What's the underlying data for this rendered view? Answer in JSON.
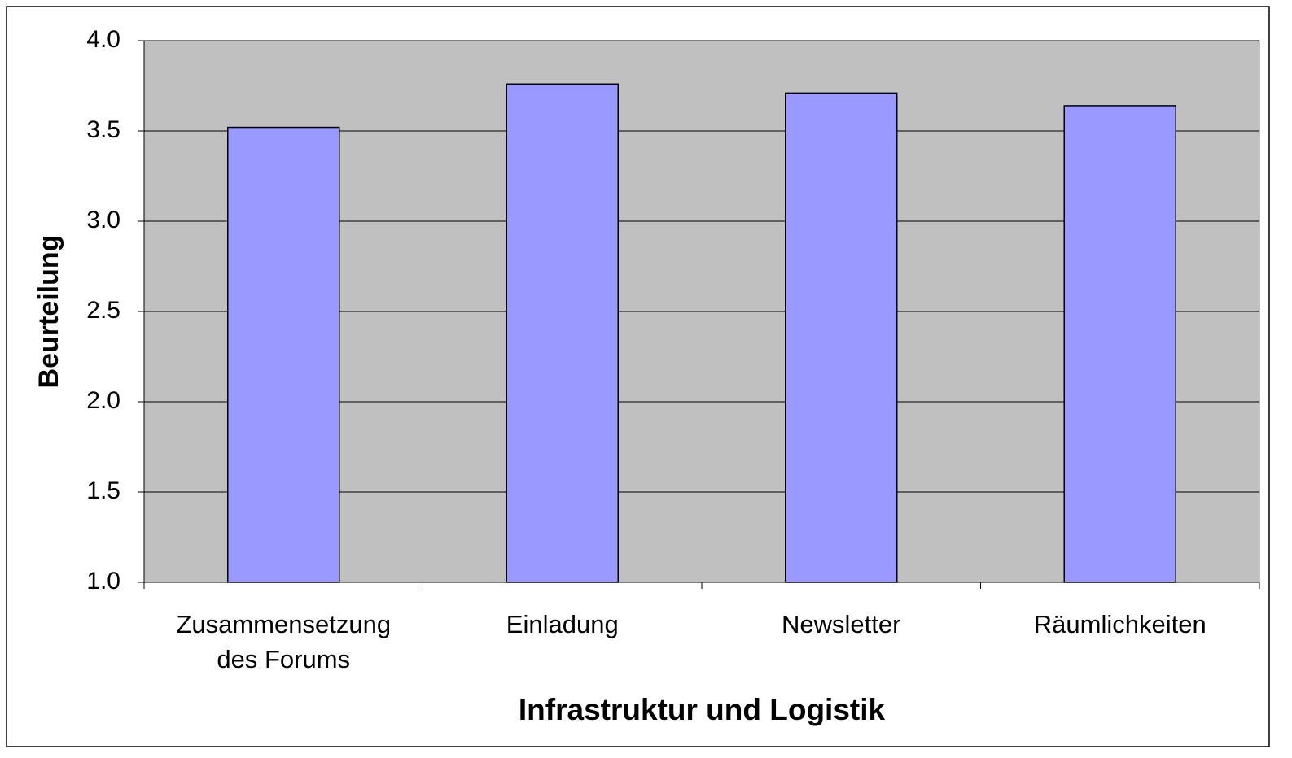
{
  "chart_data": {
    "type": "bar",
    "x_label": "Infrastruktur und Logistik",
    "y_label": "Beurteilung",
    "categories": [
      "Zusammensetzung des Forums",
      "Einladung",
      "Newsletter",
      "Räumlichkeiten"
    ],
    "values": [
      3.52,
      3.76,
      3.71,
      3.64
    ],
    "color": "#9999ff",
    "ylim": [
      1,
      4
    ],
    "yticks": [
      {
        "value": 1,
        "label": "1.0"
      },
      {
        "value": 1.5,
        "label": "1.5"
      },
      {
        "value": 2,
        "label": "2.0"
      },
      {
        "value": 2.5,
        "label": "2.5"
      },
      {
        "value": 3,
        "label": "3.0"
      },
      {
        "value": 3.5,
        "label": "3.5"
      },
      {
        "value": 4,
        "label": "4.0"
      }
    ],
    "grid": true
  }
}
